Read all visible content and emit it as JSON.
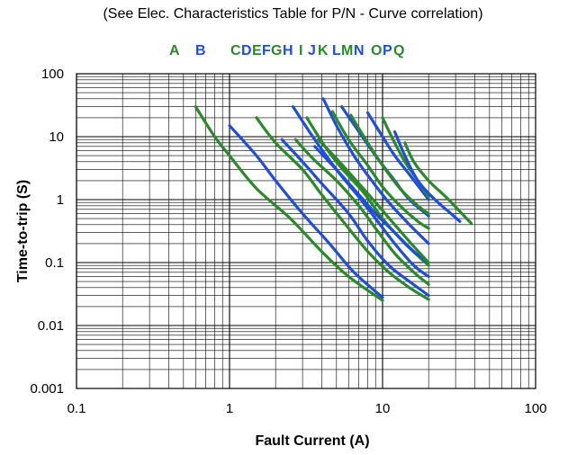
{
  "colors": {
    "green": "#2a8a2a",
    "blue": "#1f4fd8",
    "grid": "#000000"
  },
  "chart_data": {
    "type": "line",
    "title": "",
    "subtitle": "(See Elec. Characteristics Table for P/N - Curve correlation)",
    "xlabel": "Fault Current (A)",
    "ylabel": "Time-to-trip (S)",
    "xscale": "log",
    "yscale": "log",
    "xlim": [
      0.1,
      100
    ],
    "ylim": [
      0.001,
      100
    ],
    "x_ticks": [
      "0.1",
      "1",
      "10",
      "100"
    ],
    "y_ticks": [
      "0.001",
      "0.01",
      "0.1",
      "1",
      "10",
      "100"
    ],
    "grid": true,
    "legend_position": "top",
    "legend": [
      {
        "label": "A",
        "color": "green"
      },
      {
        "label": "B",
        "color": "blue"
      },
      {
        "label": "C",
        "color": "green"
      },
      {
        "label": "D",
        "color": "blue"
      },
      {
        "label": "E",
        "color": "green"
      },
      {
        "label": "F",
        "color": "blue"
      },
      {
        "label": "G",
        "color": "green"
      },
      {
        "label": "H",
        "color": "blue"
      },
      {
        "label": "I",
        "color": "green"
      },
      {
        "label": "J",
        "color": "blue"
      },
      {
        "label": "K",
        "color": "green"
      },
      {
        "label": "L",
        "color": "blue"
      },
      {
        "label": "M",
        "color": "green"
      },
      {
        "label": "N",
        "color": "blue"
      },
      {
        "label": "O",
        "color": "green"
      },
      {
        "label": "P",
        "color": "blue"
      },
      {
        "label": "Q",
        "color": "green"
      }
    ],
    "series": [
      {
        "name": "A",
        "color": "green",
        "points": [
          [
            0.6,
            30
          ],
          [
            0.8,
            10
          ],
          [
            1.0,
            5
          ],
          [
            1.5,
            1.5
          ],
          [
            2.5,
            0.5
          ],
          [
            4.0,
            0.15
          ],
          [
            6.0,
            0.06
          ],
          [
            10.0,
            0.025
          ]
        ]
      },
      {
        "name": "B",
        "color": "blue",
        "points": [
          [
            1.0,
            15
          ],
          [
            1.5,
            5
          ],
          [
            2.0,
            2
          ],
          [
            3.0,
            0.6
          ],
          [
            4.5,
            0.2
          ],
          [
            6.5,
            0.07
          ],
          [
            10.0,
            0.028
          ]
        ]
      },
      {
        "name": "C",
        "color": "green",
        "points": [
          [
            1.5,
            20
          ],
          [
            2.0,
            8
          ],
          [
            3.0,
            3
          ],
          [
            4.0,
            1.2
          ],
          [
            6.0,
            0.35
          ],
          [
            8.0,
            0.15
          ],
          [
            11.0,
            0.07
          ],
          [
            15.0,
            0.04
          ],
          [
            20.0,
            0.026
          ]
        ]
      },
      {
        "name": "D",
        "color": "blue",
        "points": [
          [
            2.2,
            9
          ],
          [
            3.0,
            4
          ],
          [
            4.0,
            1.8
          ],
          [
            6.0,
            0.6
          ],
          [
            8.0,
            0.22
          ],
          [
            11.0,
            0.09
          ],
          [
            15.0,
            0.05
          ],
          [
            20.0,
            0.03
          ]
        ]
      },
      {
        "name": "E",
        "color": "green",
        "points": [
          [
            2.7,
            9
          ],
          [
            3.5,
            4.5
          ],
          [
            5.0,
            2
          ],
          [
            7.0,
            0.8
          ],
          [
            9.0,
            0.35
          ],
          [
            12.0,
            0.14
          ],
          [
            16.0,
            0.07
          ],
          [
            20.0,
            0.045
          ]
        ]
      },
      {
        "name": "F",
        "color": "blue",
        "points": [
          [
            2.6,
            30
          ],
          [
            3.5,
            10
          ],
          [
            5.0,
            3
          ],
          [
            7.0,
            1.1
          ],
          [
            9.0,
            0.5
          ],
          [
            12.0,
            0.2
          ],
          [
            16.0,
            0.09
          ],
          [
            20.0,
            0.06
          ]
        ]
      },
      {
        "name": "G",
        "color": "green",
        "points": [
          [
            3.2,
            20
          ],
          [
            4.2,
            7
          ],
          [
            5.5,
            3
          ],
          [
            7.5,
            1.3
          ],
          [
            10.0,
            0.5
          ],
          [
            14.0,
            0.2
          ],
          [
            20.0,
            0.09
          ]
        ]
      },
      {
        "name": "H",
        "color": "blue",
        "points": [
          [
            3.6,
            7
          ],
          [
            5.0,
            3
          ],
          [
            7.0,
            1.2
          ],
          [
            9.0,
            0.6
          ],
          [
            12.0,
            0.3
          ],
          [
            16.0,
            0.15
          ],
          [
            20.0,
            0.1
          ]
        ]
      },
      {
        "name": "I",
        "color": "green",
        "points": [
          [
            3.8,
            9
          ],
          [
            5.0,
            4.5
          ],
          [
            7.0,
            1.8
          ],
          [
            9.0,
            0.9
          ],
          [
            12.0,
            0.4
          ],
          [
            16.0,
            0.18
          ],
          [
            20.0,
            0.1
          ]
        ]
      },
      {
        "name": "J",
        "color": "blue",
        "points": [
          [
            4.1,
            40
          ],
          [
            5.0,
            15
          ],
          [
            6.5,
            5
          ],
          [
            8.5,
            2
          ],
          [
            11.0,
            0.9
          ],
          [
            15.0,
            0.4
          ],
          [
            20.0,
            0.2
          ]
        ]
      },
      {
        "name": "K",
        "color": "green",
        "points": [
          [
            4.7,
            25
          ],
          [
            6.0,
            9
          ],
          [
            8.0,
            3.5
          ],
          [
            10.0,
            1.6
          ],
          [
            13.0,
            0.8
          ],
          [
            17.0,
            0.45
          ],
          [
            20.0,
            0.35
          ]
        ]
      },
      {
        "name": "L",
        "color": "blue",
        "points": [
          [
            5.4,
            30
          ],
          [
            7.0,
            12
          ],
          [
            9.0,
            5
          ],
          [
            12.0,
            2
          ],
          [
            15.0,
            1
          ],
          [
            20.0,
            0.55
          ]
        ]
      },
      {
        "name": "M",
        "color": "green",
        "points": [
          [
            6.2,
            22
          ],
          [
            8.0,
            8
          ],
          [
            10.0,
            3.5
          ],
          [
            13.0,
            1.5
          ],
          [
            17.0,
            0.8
          ],
          [
            20.0,
            0.6
          ]
        ]
      },
      {
        "name": "N",
        "color": "blue",
        "points": [
          [
            8.0,
            24
          ],
          [
            10.0,
            10
          ],
          [
            12.0,
            5
          ],
          [
            15.0,
            2.5
          ],
          [
            20.0,
            1.0
          ]
        ]
      },
      {
        "name": "O",
        "color": "green",
        "points": [
          [
            10.0,
            20
          ],
          [
            12.0,
            8
          ],
          [
            14.0,
            4
          ],
          [
            17.0,
            2
          ],
          [
            20.0,
            1.1
          ]
        ]
      },
      {
        "name": "P",
        "color": "blue",
        "points": [
          [
            12.0,
            12
          ],
          [
            14.0,
            5
          ],
          [
            17.0,
            2
          ],
          [
            22.0,
            1
          ],
          [
            28.0,
            0.6
          ],
          [
            32.0,
            0.45
          ]
        ]
      },
      {
        "name": "Q",
        "color": "green",
        "points": [
          [
            14.0,
            8
          ],
          [
            16.0,
            4
          ],
          [
            20.0,
            2
          ],
          [
            26.0,
            1.1
          ],
          [
            32.0,
            0.65
          ],
          [
            38.0,
            0.42
          ]
        ]
      }
    ]
  }
}
